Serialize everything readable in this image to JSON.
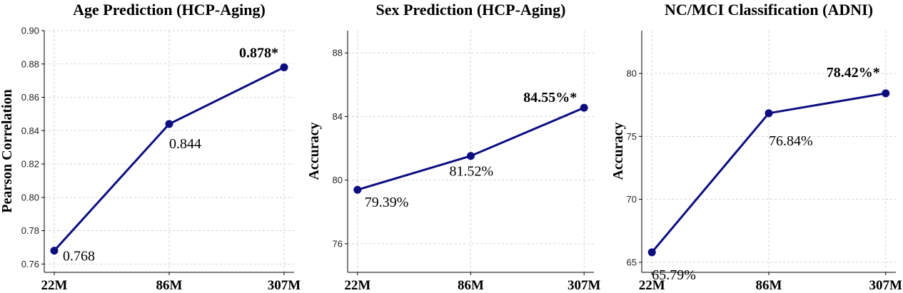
{
  "chart_data": [
    {
      "type": "line",
      "title": "Age Prediction (HCP-Aging)",
      "ylabel": "Pearson Correlation",
      "categories": [
        "22M",
        "86M",
        "307M"
      ],
      "values": [
        0.768,
        0.844,
        0.878
      ],
      "data_labels": [
        "0.768",
        "0.844",
        "0.878*"
      ],
      "bold_label_index": 2,
      "ylim": [
        0.755,
        0.9
      ],
      "yticks": [
        0.76,
        0.78,
        0.8,
        0.82,
        0.84,
        0.86,
        0.88,
        0.9
      ],
      "ytick_labels": [
        "0.76",
        "0.78",
        "0.80",
        "0.82",
        "0.84",
        "0.86",
        "0.88",
        "0.90"
      ],
      "grid": true,
      "color": "#0d0d80"
    },
    {
      "type": "line",
      "title": "Sex Prediction (HCP-Aging)",
      "ylabel": "Accuracy",
      "categories": [
        "22M",
        "86M",
        "307M"
      ],
      "values": [
        79.39,
        81.52,
        84.55
      ],
      "data_labels": [
        "79.39%",
        "81.52%",
        "84.55%*"
      ],
      "bold_label_index": 2,
      "ylim": [
        74.2,
        89.4
      ],
      "yticks": [
        76,
        80,
        84,
        88
      ],
      "ytick_labels": [
        "76",
        "80",
        "84",
        "88"
      ],
      "grid": true,
      "color": "#0d0d80"
    },
    {
      "type": "line",
      "title": "NC/MCI Classification (ADNI)",
      "ylabel": "Accuracy",
      "categories": [
        "22M",
        "86M",
        "307M"
      ],
      "values": [
        65.79,
        76.84,
        78.42
      ],
      "data_labels": [
        "65.79%",
        "76.84%",
        "78.42%*"
      ],
      "bold_label_index": 2,
      "ylim": [
        64.2,
        83.4
      ],
      "yticks": [
        65,
        70,
        75,
        80
      ],
      "ytick_labels": [
        "65",
        "70",
        "75",
        "80"
      ],
      "grid": true,
      "color": "#0d0d80"
    }
  ]
}
